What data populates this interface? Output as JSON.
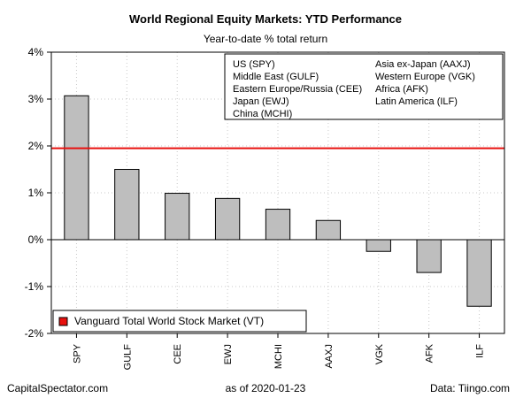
{
  "chart_data": {
    "type": "bar",
    "title": "World Regional Equity Markets: YTD Performance",
    "subtitle": "Year-to-date % total return",
    "categories": [
      "SPY",
      "GULF",
      "CEE",
      "EWJ",
      "MCHI",
      "AAXJ",
      "VGK",
      "AFK",
      "ILF"
    ],
    "values": [
      3.07,
      1.5,
      0.99,
      0.88,
      0.65,
      0.41,
      -0.25,
      -0.7,
      -1.42
    ],
    "ylim": [
      -2,
      4
    ],
    "yticks": [
      -2,
      -1,
      0,
      1,
      2,
      3,
      4
    ],
    "ytick_labels": [
      "-2%",
      "-1%",
      "0%",
      "1%",
      "2%",
      "3%",
      "4%"
    ],
    "grid": true,
    "bar_color": "#bebebe",
    "reference_line": {
      "value": 1.95,
      "color": "#e8100e",
      "label": "Vanguard Total World Stock Market (VT)"
    },
    "legend_position": "top-right",
    "legend_columns": [
      [
        "US (SPY)",
        "Middle East (GULF)",
        "Eastern Europe/Russia (CEE)",
        "Japan (EWJ)",
        "China (MCHI)"
      ],
      [
        "Asia ex-Japan (AAXJ)",
        "Western Europe (VGK)",
        "Africa (AFK)",
        "Latin America (ILF)"
      ]
    ],
    "reference_legend_position": "bottom-left"
  },
  "footer": {
    "source_left": "CapitalSpectator.com",
    "date_text": "as of   2020-01-23",
    "source_right": "Data: Tiingo.com"
  }
}
